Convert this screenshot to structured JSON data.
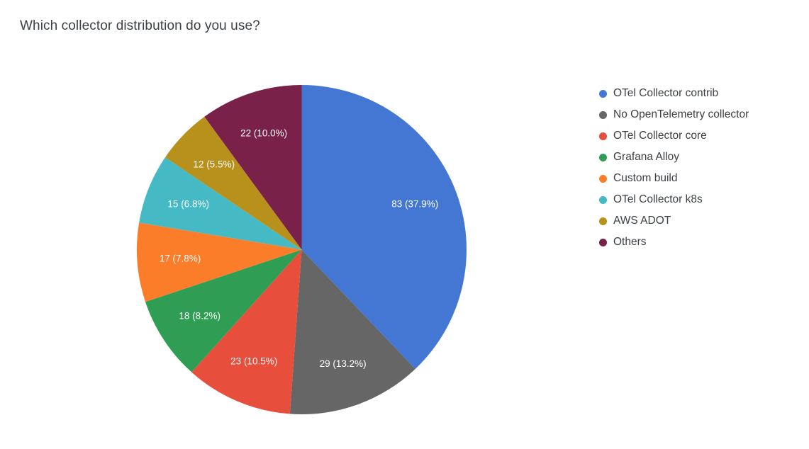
{
  "title": "Which collector distribution do you use?",
  "chart_data": {
    "type": "pie",
    "title": "Which collector distribution do you use?",
    "labels": [
      "OTel Collector contrib",
      "No OpenTelemetry collector",
      "OTel Collector core",
      "Grafana Alloy",
      "Custom build",
      "OTel Collector k8s",
      "AWS ADOT",
      "Others"
    ],
    "values": [
      83,
      29,
      23,
      18,
      17,
      15,
      12,
      22
    ],
    "percentages": [
      37.9,
      13.2,
      10.5,
      8.2,
      7.8,
      6.8,
      5.5,
      10.0
    ],
    "slice_labels": [
      "83 (37.9%)",
      "29 (13.2%)",
      "23 (10.5%)",
      "18 (8.2%)",
      "17 (7.8%)",
      "15 (6.8%)",
      "12 (5.5%)",
      "22 (10.0%)"
    ],
    "colors": [
      "#4477D4",
      "#666666",
      "#E74E3C",
      "#2F9E54",
      "#FB7D29",
      "#45BAC4",
      "#B8911C",
      "#7A2149"
    ],
    "slice_label_color": "#ffffff",
    "start_angle": 0,
    "direction": "clockwise",
    "legend_position": "right",
    "grid": false
  }
}
